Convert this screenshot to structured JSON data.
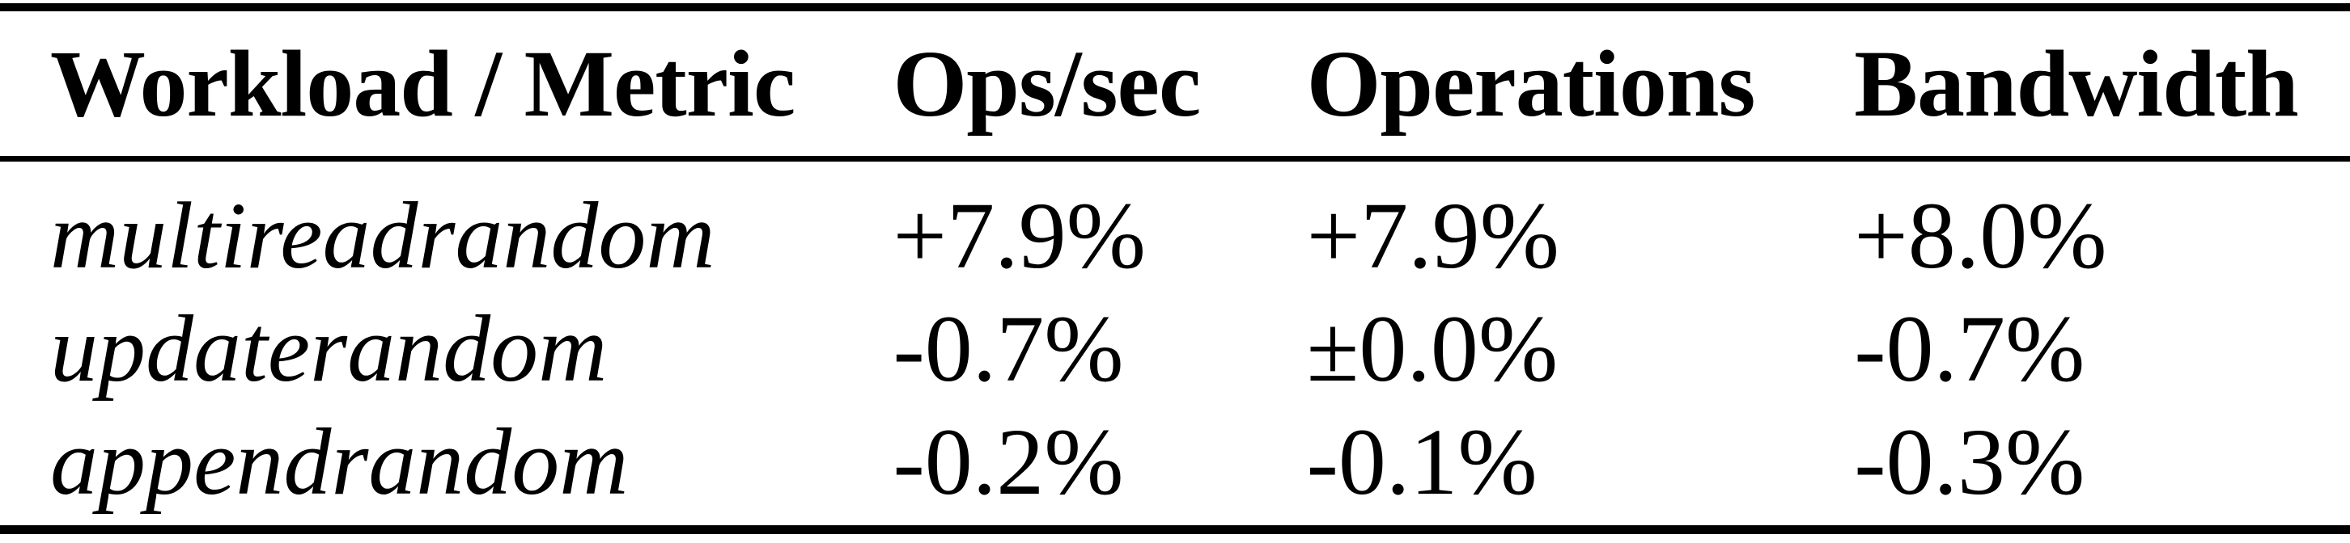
{
  "table": {
    "columns": [
      {
        "label": "Workload / Metric"
      },
      {
        "label": "Ops/sec"
      },
      {
        "label": "Operations"
      },
      {
        "label": "Bandwidth"
      }
    ],
    "rows": [
      {
        "workload": "multireadrandom",
        "ops_per_sec": "+7.9%",
        "operations": "+7.9%",
        "bandwidth": "+8.0%"
      },
      {
        "workload": "updaterandom",
        "ops_per_sec": "-0.7%",
        "operations": "±0.0%",
        "bandwidth": "-0.7%"
      },
      {
        "workload": "appendrandom",
        "ops_per_sec": "-0.2%",
        "operations": "-0.1%",
        "bandwidth": "-0.3%"
      }
    ]
  },
  "colors": {
    "text": "#000000",
    "background": "#ffffff",
    "rule": "#000000"
  }
}
